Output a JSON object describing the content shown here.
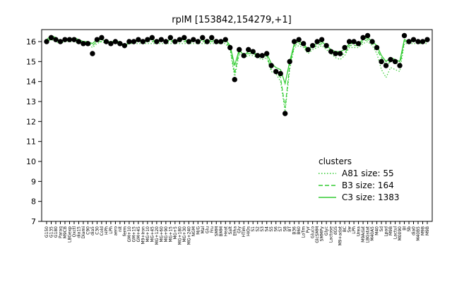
{
  "chart_data": {
    "type": "line",
    "title": "rplM [153842,154279,+1]",
    "xlabel": "",
    "ylabel": "",
    "ylim": [
      7,
      16.6
    ],
    "yticks": [
      7,
      8,
      9,
      10,
      11,
      12,
      13,
      14,
      15,
      16
    ],
    "grid": false,
    "legend": {
      "title": "clusters",
      "placement": "right",
      "entries": [
        {
          "label": "A81 size: 55",
          "style": "dotted",
          "color": "#33cc33"
        },
        {
          "label": "B3 size: 164",
          "style": "dashed",
          "color": "#33cc33"
        },
        {
          "label": "C3 size: 1383",
          "style": "solid",
          "color": "#33cc33"
        }
      ]
    },
    "x_tick_labels": [
      "G150",
      "G135",
      "G180",
      "Paraq",
      "M9CB",
      "LBGexp",
      "Oxctl",
      "dia15",
      "Diami",
      "C90",
      "dia5",
      "C30",
      "Cold",
      "HPh",
      "LPh",
      "aero",
      "nit",
      "ferm",
      "GM+10",
      "GM+15",
      "GM+45",
      "M9+Iron",
      "MG+10",
      "MG+45",
      "MG+120",
      "MG+60",
      "MG+90",
      "MG+15",
      "MG+5",
      "MG+180",
      "MG+30",
      "MG+240",
      "NGM",
      "M/G",
      "Mal",
      "Glu",
      "Fru",
      "SMM",
      "BMM",
      "Heat",
      "Salt",
      "Etha",
      "Gly",
      "HTim",
      "HiOs",
      "S1",
      "S2",
      "S3",
      "S4",
      "S5",
      "S6",
      "S7",
      "S8",
      "BT",
      "B36",
      "B60",
      "LoTm",
      "Pyr",
      "Gluco",
      "GlcSMM",
      "SMMPy",
      "Glyc",
      "Lactose",
      "dGS",
      "M9+adat",
      "BC",
      "Sw",
      "LPh",
      "Urea",
      "M9Adat",
      "LBGstat",
      "M40A5",
      "M40",
      "Sd",
      "Lpad",
      "M9B",
      "Lactul",
      "M0090",
      "BI",
      "Sb",
      "dia0",
      "M40B5",
      "M9B",
      "M9B"
    ],
    "series": [
      {
        "name": "C3 size: 1383",
        "style": "solid",
        "values": [
          16.1,
          16.3,
          16.2,
          16.0,
          16.1,
          16.1,
          16.2,
          16.1,
          16.0,
          16.0,
          15.9,
          16.1,
          16.1,
          16.0,
          16.0,
          16.0,
          16.0,
          15.7,
          16.0,
          16.0,
          16.1,
          16.0,
          16.1,
          16.1,
          16.0,
          16.1,
          16.0,
          16.1,
          16.0,
          16.1,
          16.1,
          16.0,
          16.1,
          16.0,
          16.1,
          16.0,
          16.1,
          16.0,
          16.0,
          16.1,
          15.8,
          14.8,
          15.6,
          15.3,
          15.5,
          15.5,
          15.3,
          15.3,
          15.4,
          14.9,
          14.7,
          14.6,
          13.9,
          15.0,
          15.9,
          16.0,
          15.9,
          15.6,
          15.8,
          15.9,
          16.0,
          15.8,
          15.6,
          15.5,
          15.5,
          15.6,
          15.9,
          15.9,
          15.9,
          16.1,
          16.2,
          16.0,
          15.8,
          15.3,
          15.0,
          15.2,
          15.1,
          15.0,
          16.1,
          16.0,
          16.1,
          16.0,
          16.0,
          16.1
        ]
      },
      {
        "name": "B3 size: 164",
        "style": "dashed",
        "values": [
          16.0,
          16.2,
          16.1,
          16.0,
          16.0,
          16.1,
          16.1,
          16.0,
          16.0,
          16.0,
          15.8,
          16.0,
          16.0,
          16.0,
          16.0,
          16.0,
          16.0,
          15.8,
          16.0,
          16.0,
          16.0,
          16.0,
          16.0,
          16.0,
          16.0,
          16.0,
          16.0,
          16.0,
          16.0,
          16.0,
          16.0,
          16.0,
          16.0,
          16.0,
          16.0,
          16.0,
          16.0,
          16.0,
          16.0,
          16.0,
          15.7,
          14.4,
          15.5,
          15.3,
          15.4,
          15.4,
          15.3,
          15.2,
          15.3,
          14.6,
          14.5,
          14.2,
          12.7,
          14.8,
          15.8,
          15.9,
          15.8,
          15.5,
          15.7,
          15.8,
          15.9,
          15.7,
          15.5,
          15.4,
          15.3,
          15.4,
          15.8,
          15.8,
          15.8,
          16.0,
          16.1,
          15.9,
          15.6,
          15.2,
          14.8,
          15.0,
          15.0,
          14.8,
          16.0,
          16.0,
          16.0,
          16.0,
          16.0,
          16.0
        ]
      },
      {
        "name": "A81 size: 55",
        "style": "dotted",
        "values": [
          16.0,
          16.1,
          16.0,
          15.9,
          16.0,
          16.0,
          16.0,
          15.9,
          15.9,
          15.9,
          15.7,
          15.9,
          16.0,
          15.9,
          15.9,
          15.9,
          15.9,
          15.7,
          15.9,
          15.9,
          15.9,
          15.9,
          15.9,
          15.9,
          15.9,
          15.9,
          15.9,
          15.9,
          15.9,
          15.9,
          15.9,
          15.9,
          15.9,
          15.9,
          15.9,
          15.9,
          15.9,
          15.9,
          15.9,
          15.9,
          15.6,
          14.2,
          15.4,
          15.2,
          15.3,
          15.3,
          15.2,
          15.1,
          15.2,
          14.5,
          14.4,
          14.0,
          12.5,
          14.6,
          15.7,
          15.8,
          15.7,
          15.4,
          15.6,
          15.7,
          15.8,
          15.6,
          15.4,
          15.2,
          15.1,
          15.3,
          15.7,
          15.7,
          15.7,
          15.9,
          16.0,
          15.8,
          15.4,
          14.6,
          14.2,
          14.7,
          14.6,
          14.5,
          15.9,
          15.9,
          15.9,
          15.9,
          15.9,
          15.9
        ]
      }
    ],
    "points": [
      16.0,
      16.2,
      16.1,
      16.0,
      16.1,
      16.1,
      16.1,
      16.0,
      15.9,
      15.9,
      15.4,
      16.1,
      16.2,
      16.0,
      15.9,
      16.0,
      15.9,
      15.8,
      16.0,
      16.0,
      16.1,
      16.0,
      16.1,
      16.2,
      16.0,
      16.1,
      16.0,
      16.2,
      16.0,
      16.1,
      16.2,
      16.0,
      16.1,
      16.0,
      16.2,
      16.0,
      16.2,
      16.0,
      16.0,
      16.1,
      15.7,
      14.1,
      15.6,
      15.3,
      15.6,
      15.5,
      15.3,
      15.3,
      15.4,
      14.8,
      14.5,
      14.4,
      12.4,
      15.0,
      16.0,
      16.1,
      15.9,
      15.6,
      15.8,
      16.0,
      16.1,
      15.8,
      15.5,
      15.4,
      15.4,
      15.7,
      16.0,
      16.0,
      15.9,
      16.2,
      16.3,
      16.0,
      15.7,
      15.0,
      14.8,
      15.1,
      15.0,
      14.8,
      16.3,
      16.0,
      16.1,
      16.0,
      16.0,
      16.1
    ]
  }
}
